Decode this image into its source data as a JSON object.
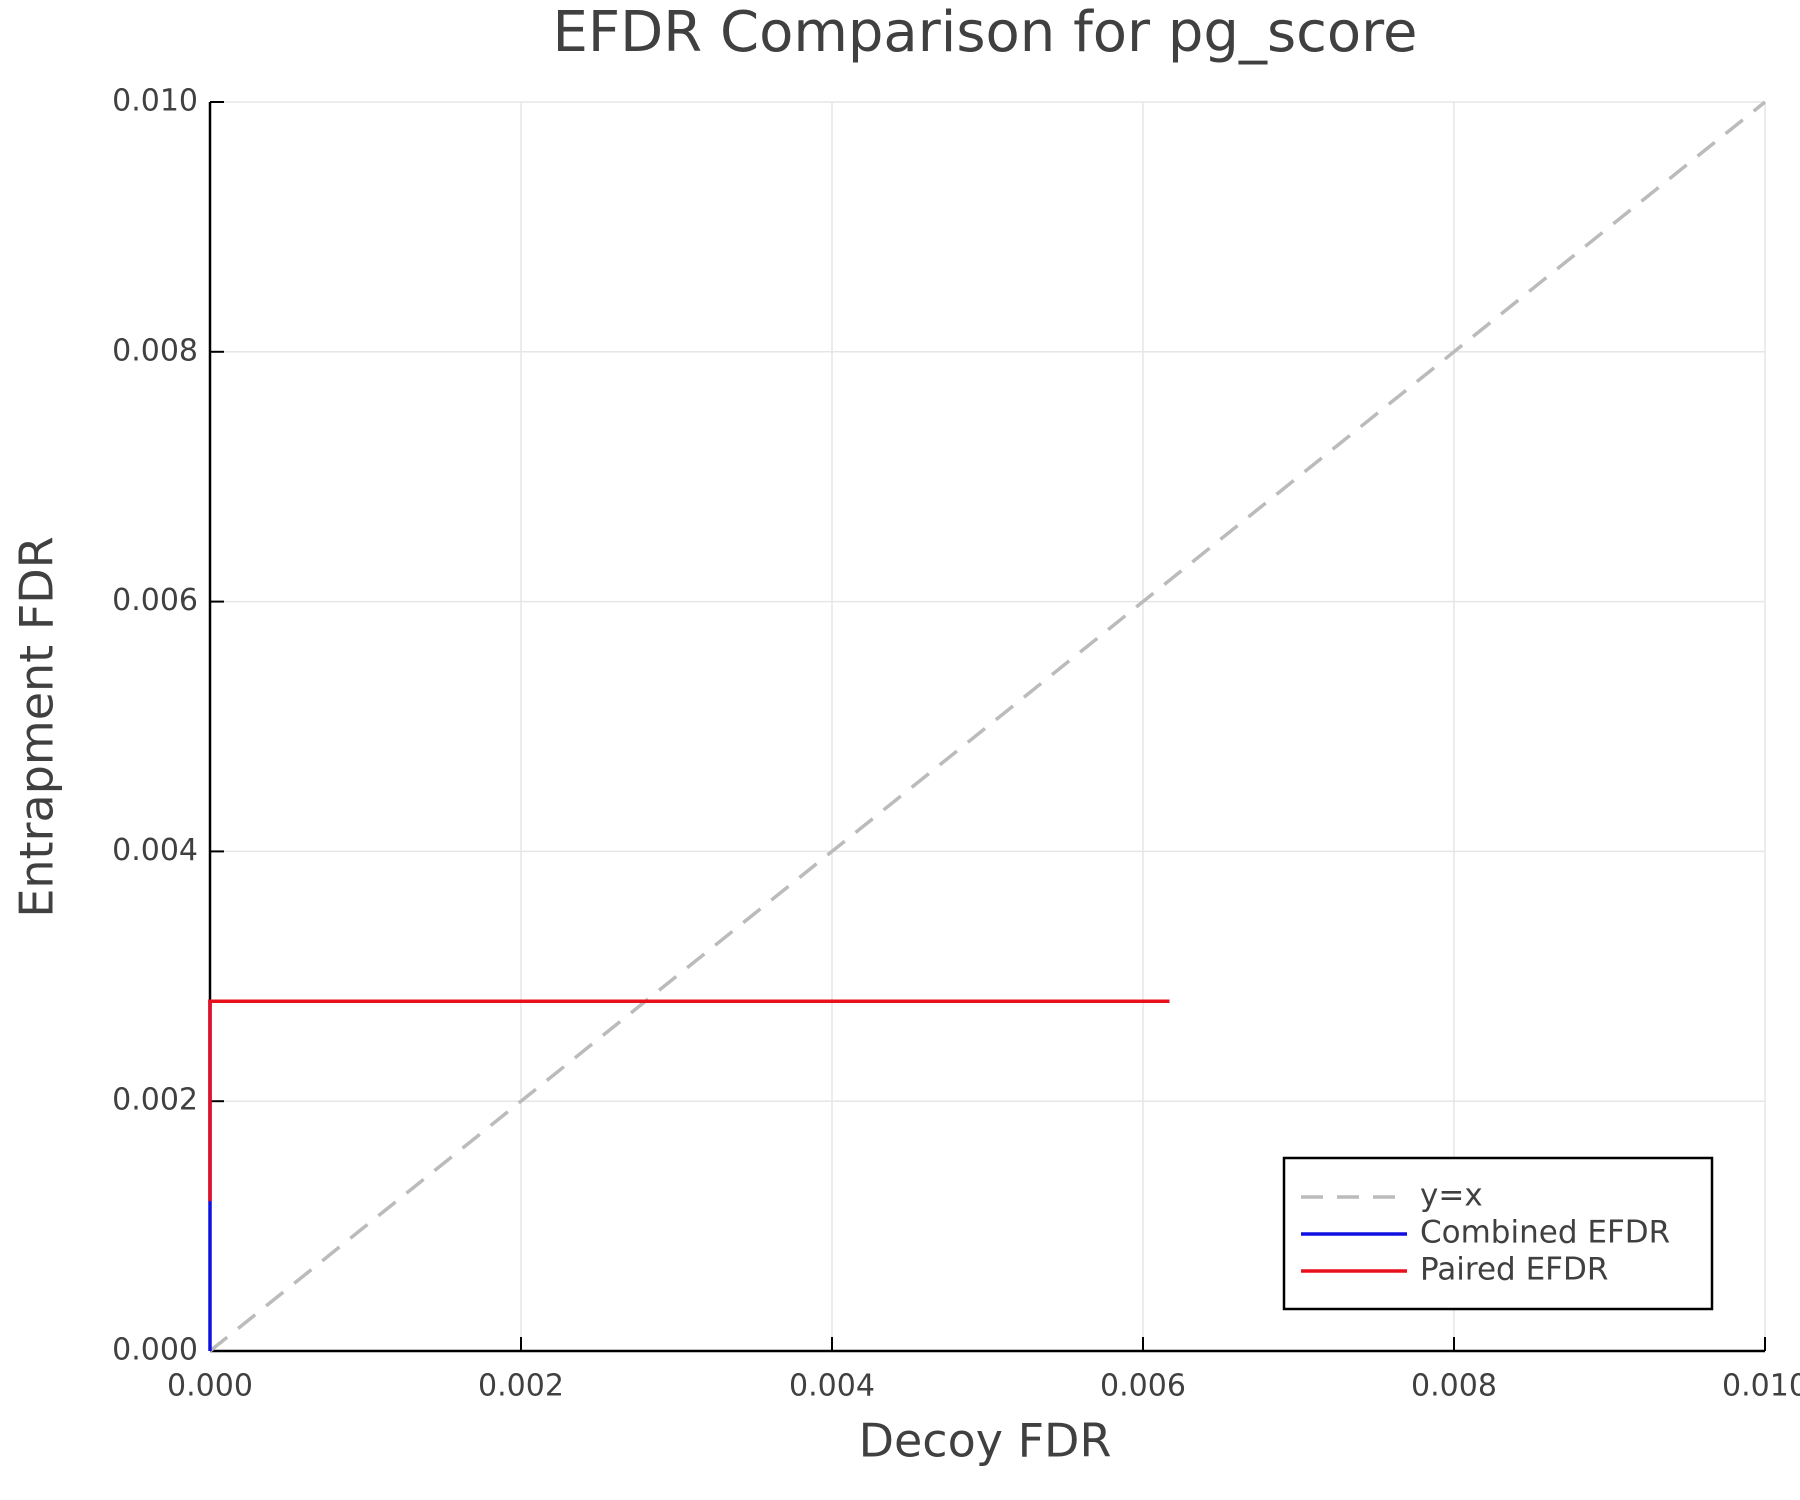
{
  "chart_data": {
    "type": "line",
    "title": "EFDR Comparison for pg_score",
    "x_label": "Decoy FDR",
    "y_label": "Entrapment FDR",
    "xlim": [
      0,
      0.01
    ],
    "ylim": [
      0,
      0.01
    ],
    "xticks": [
      {
        "value": 0,
        "label": "0.000"
      },
      {
        "value": 0.002,
        "label": "0.002"
      },
      {
        "value": 0.004,
        "label": "0.004"
      },
      {
        "value": 0.006,
        "label": "0.006"
      },
      {
        "value": 0.008,
        "label": "0.008"
      },
      {
        "value": 0.01,
        "label": "0.010"
      }
    ],
    "yticks": [
      {
        "value": 0,
        "label": "0.000"
      },
      {
        "value": 0.002,
        "label": "0.002"
      },
      {
        "value": 0.004,
        "label": "0.004"
      },
      {
        "value": 0.006,
        "label": "0.006"
      },
      {
        "value": 0.008,
        "label": "0.008"
      },
      {
        "value": 0.01,
        "label": "0.010"
      }
    ],
    "grid": true,
    "legend": "bottom-right",
    "series": [
      {
        "name": "y=x",
        "color": "#bbbbbb",
        "dashed": true,
        "x": [
          0,
          0.01
        ],
        "values": [
          0,
          0.01
        ]
      },
      {
        "name": "Combined EFDR",
        "color": "#1010e0",
        "dashed": false,
        "x": [
          0,
          0,
          0.00617
        ],
        "values": [
          0,
          0.0028,
          0.0028
        ]
      },
      {
        "name": "Paired EFDR",
        "color": "#e8101c",
        "dashed": false,
        "x": [
          0,
          0,
          0.00617
        ],
        "values": [
          0.0012,
          0.0028,
          0.0028
        ]
      }
    ]
  }
}
